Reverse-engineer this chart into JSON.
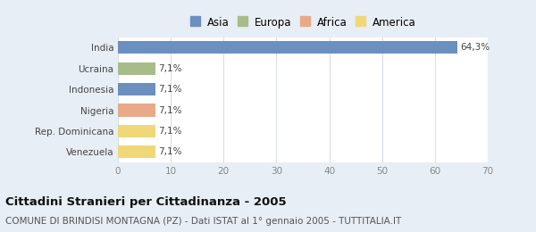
{
  "categories": [
    "India",
    "Ucraina",
    "Indonesia",
    "Nigeria",
    "Rep. Dominicana",
    "Venezuela"
  ],
  "values": [
    64.3,
    7.1,
    7.1,
    7.1,
    7.1,
    7.1
  ],
  "bar_colors": [
    "#6b8fbf",
    "#a8bc8a",
    "#6b8fbf",
    "#e8aa88",
    "#f0d878",
    "#f0d878"
  ],
  "labels": [
    "64,3%",
    "7,1%",
    "7,1%",
    "7,1%",
    "7,1%",
    "7,1%"
  ],
  "xlim": [
    0,
    70
  ],
  "xticks": [
    0,
    10,
    20,
    30,
    40,
    50,
    60,
    70
  ],
  "legend_entries": [
    {
      "label": "Asia",
      "color": "#6b8fbf"
    },
    {
      "label": "Europa",
      "color": "#a8bc8a"
    },
    {
      "label": "Africa",
      "color": "#e8aa88"
    },
    {
      "label": "America",
      "color": "#f0d878"
    }
  ],
  "title": "Cittadini Stranieri per Cittadinanza - 2005",
  "subtitle": "COMUNE DI BRINDISI MONTAGNA (PZ) - Dati ISTAT al 1° gennaio 2005 - TUTTITALIA.IT",
  "fig_background": "#e8eef5",
  "plot_background": "#ffffff",
  "bar_height": 0.6,
  "grid_color": "#d8dde8",
  "title_fontsize": 9.5,
  "subtitle_fontsize": 7.5,
  "label_fontsize": 7.5,
  "tick_fontsize": 7.5,
  "ytick_fontsize": 7.5,
  "legend_fontsize": 8.5
}
